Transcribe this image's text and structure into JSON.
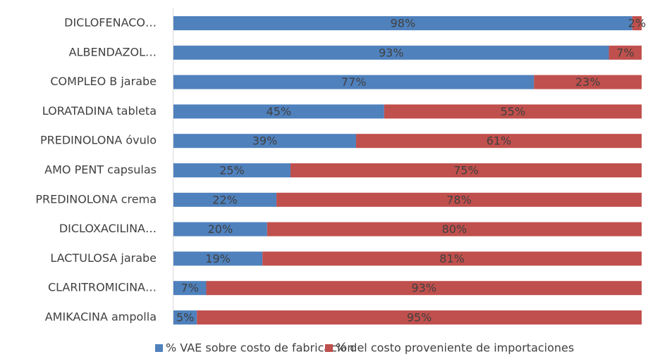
{
  "chart_data": {
    "type": "stacked-bar-horizontal",
    "categories": [
      "DICLOFENACO…",
      "ALBENDAZOL…",
      "COMPLEO B jarabe",
      "LORATADINA tableta",
      "PREDINOLONA óvulo",
      "AMO PENT capsulas",
      "PREDINOLONA crema",
      "DICLOXACILINA…",
      "LACTULOSA jarabe",
      "CLARITROMICINA…",
      "AMIKACINA ampolla"
    ],
    "series": [
      {
        "name": "% VAE sobre costo de fabricación",
        "color": "#4f81bd",
        "values": [
          98,
          93,
          77,
          45,
          39,
          25,
          22,
          20,
          19,
          7,
          5
        ],
        "value_labels": [
          "98%",
          "93%",
          "77%",
          "45%",
          "39%",
          "25%",
          "22%",
          "20%",
          "19%",
          "7%",
          "5%"
        ]
      },
      {
        "name": "% del costo proveniente de importaciones",
        "color": "#c0504d",
        "values": [
          2,
          7,
          23,
          55,
          61,
          75,
          78,
          80,
          81,
          93,
          95
        ],
        "value_labels": [
          "2%",
          "7%",
          "23%",
          "55%",
          "61%",
          "75%",
          "78%",
          "80%",
          "81%",
          "93%",
          "95%"
        ]
      }
    ],
    "xlim": [
      0,
      100
    ],
    "legend": "bottom"
  }
}
